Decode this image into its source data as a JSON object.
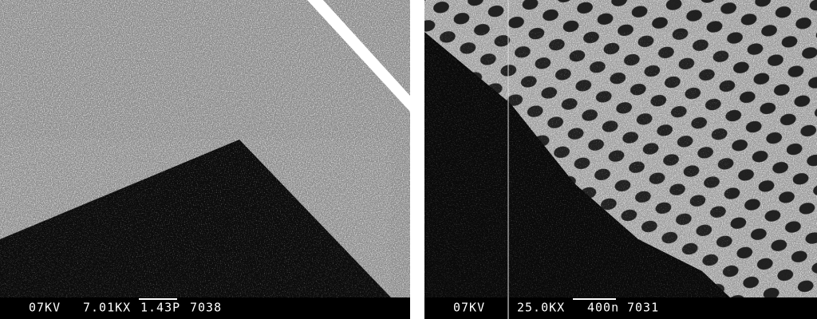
{
  "panels": [
    {
      "caption": [
        "07KV",
        "7.01KX",
        "1.43P",
        "7038"
      ]
    },
    {
      "caption": [
        "07KV",
        "25.0KX",
        "400n",
        "7031"
      ]
    }
  ]
}
